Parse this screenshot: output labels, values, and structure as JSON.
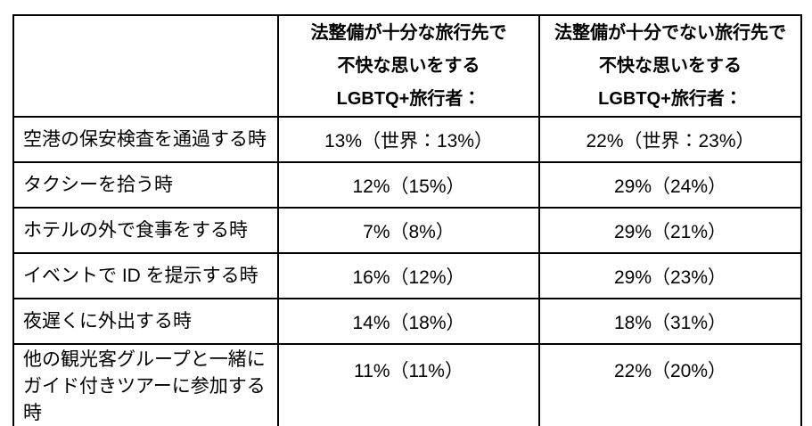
{
  "table": {
    "header": {
      "col1": "",
      "col2": "法整備が十分な旅行先で\n不快な思いをする\nLGBTQ+旅行者：",
      "col3": "法整備が十分でない旅行先で\n不快な思いをする\nLGBTQ+旅行者："
    },
    "rows": [
      {
        "label": "空港の保安検査を通過する時",
        "sufficient": "13%（世界：13%）",
        "insufficient": "22%（世界：23%）"
      },
      {
        "label": "タクシーを拾う時",
        "sufficient": "12%（15%）",
        "insufficient": "29%（24%）"
      },
      {
        "label": "ホテルの外で食事をする時",
        "sufficient": "7%（8%）",
        "insufficient": "29%（21%）"
      },
      {
        "label": "イベントで ID を提示する時",
        "sufficient": "16%（12%）",
        "insufficient": "29%（23%）"
      },
      {
        "label": "夜遅くに外出する時",
        "sufficient": "14%（18%）",
        "insufficient": "18%（31%）"
      },
      {
        "label": "他の観光客グループと一緒に\nガイド付きツアーに参加する時",
        "sufficient": "11%（11%）",
        "insufficient": "22%（20%）"
      }
    ]
  },
  "chart_data": {
    "type": "table",
    "columns": [
      "",
      "法整備が十分な旅行先で不快な思いをするLGBTQ+旅行者：",
      "法整備が十分でない旅行先で不快な思いをするLGBTQ+旅行者："
    ],
    "row_labels": [
      "空港の保安検査を通過する時",
      "タクシーを拾う時",
      "ホテルの外で食事をする時",
      "イベントで ID を提示する時",
      "夜遅くに外出する時",
      "他の観光客グループと一緒にガイド付きツアーに参加する時"
    ],
    "series": [
      {
        "name": "法整備が十分（日本）",
        "unit": "%",
        "values": [
          13,
          12,
          7,
          16,
          14,
          11
        ]
      },
      {
        "name": "法整備が十分（世界）",
        "unit": "%",
        "values": [
          13,
          15,
          8,
          12,
          18,
          11
        ]
      },
      {
        "name": "法整備が十分でない（日本）",
        "unit": "%",
        "values": [
          22,
          29,
          29,
          29,
          18,
          22
        ]
      },
      {
        "name": "法整備が十分でない（世界）",
        "unit": "%",
        "values": [
          23,
          24,
          21,
          23,
          31,
          20
        ]
      }
    ],
    "colors": {
      "border": "#000000",
      "text": "#000000",
      "background": "#ffffff"
    }
  }
}
